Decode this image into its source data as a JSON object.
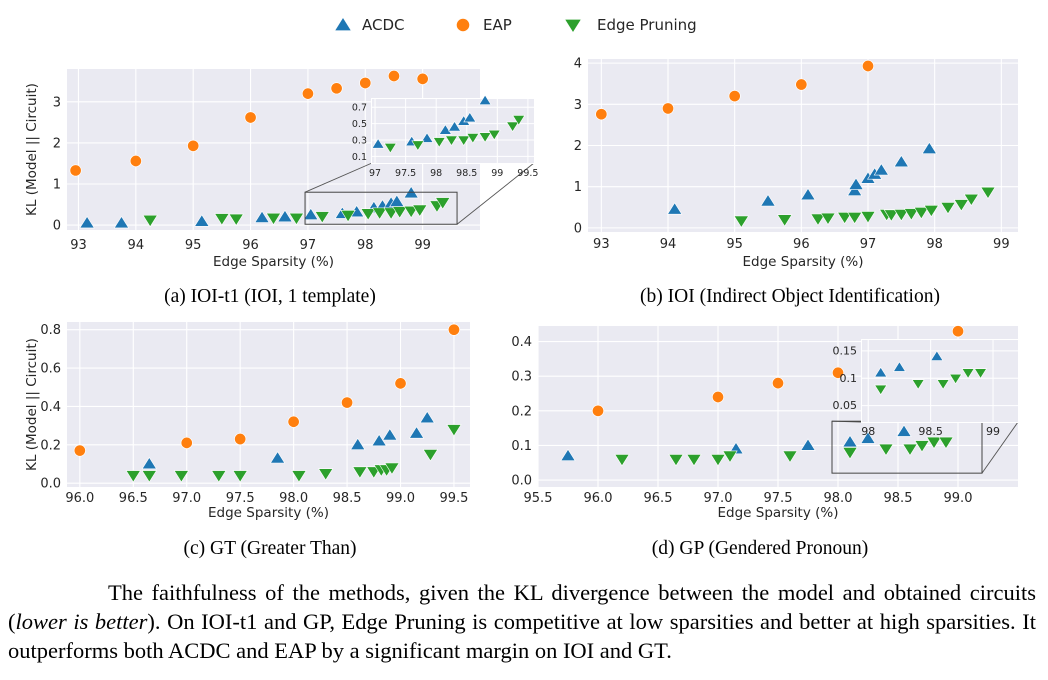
{
  "legend": {
    "placement": "top-center",
    "entries": [
      {
        "name": "ACDC",
        "marker": "triangle-up",
        "color": "#1f77b4"
      },
      {
        "name": "EAP",
        "marker": "circle",
        "color": "#ff7f0e"
      },
      {
        "name": "Edge Pruning",
        "marker": "triangle-down",
        "color": "#2ca02c"
      }
    ]
  },
  "chart_data": [
    {
      "id": "a",
      "type": "scatter",
      "caption": "(a) IOI-t1 (IOI, 1 template)",
      "xlabel": "Edge Sparsity (%)",
      "ylabel": "KL (Model || Circuit)",
      "xlim": [
        92.8,
        100.0
      ],
      "ylim": [
        -0.12,
        3.8
      ],
      "xticks": [
        93,
        94,
        95,
        96,
        97,
        98,
        99
      ],
      "yticks": [
        0,
        1,
        2,
        3
      ],
      "grid": true,
      "series": [
        {
          "name": "ACDC",
          "x": [
            93.15,
            93.75,
            95.15,
            96.2,
            96.6,
            97.05,
            97.6,
            97.85,
            98.15,
            98.3,
            98.45,
            98.55,
            98.8
          ],
          "y": [
            0.05,
            0.05,
            0.09,
            0.18,
            0.2,
            0.25,
            0.28,
            0.32,
            0.42,
            0.46,
            0.53,
            0.57,
            0.78
          ]
        },
        {
          "name": "EAP",
          "x": [
            92.95,
            94.0,
            95.0,
            96.0,
            97.0,
            97.5,
            98.0,
            98.5,
            99.0
          ],
          "y": [
            1.33,
            1.56,
            1.93,
            2.62,
            3.2,
            3.33,
            3.46,
            3.63,
            3.56
          ]
        },
        {
          "name": "Edge Pruning",
          "x": [
            94.25,
            95.5,
            95.75,
            96.4,
            96.8,
            97.25,
            97.7,
            98.05,
            98.25,
            98.45,
            98.6,
            98.8,
            98.95,
            99.25,
            99.35
          ],
          "y": [
            0.12,
            0.16,
            0.15,
            0.17,
            0.17,
            0.21,
            0.24,
            0.28,
            0.3,
            0.3,
            0.33,
            0.34,
            0.37,
            0.47,
            0.55
          ]
        }
      ],
      "inset": {
        "xlim": [
          96.95,
          99.6
        ],
        "ylim": [
          0.02,
          0.8
        ],
        "xticks": [
          "97",
          "97.5",
          "98",
          "98.5",
          "99",
          "99.5"
        ],
        "yticks": [
          "0.1",
          "0.3",
          "0.5",
          "0.7"
        ]
      }
    },
    {
      "id": "b",
      "type": "scatter",
      "caption": "(b) IOI (Indirect Object Identification)",
      "xlabel": "Edge Sparsity (%)",
      "ylabel": "",
      "xlim": [
        92.8,
        99.25
      ],
      "ylim": [
        -0.1,
        4.1
      ],
      "xticks": [
        93,
        94,
        95,
        96,
        97,
        98,
        99
      ],
      "yticks": [
        0,
        1,
        2,
        3,
        4
      ],
      "grid": true,
      "series": [
        {
          "name": "ACDC",
          "x": [
            94.1,
            95.5,
            96.1,
            96.8,
            96.82,
            97.0,
            97.1,
            97.2,
            97.5,
            97.92
          ],
          "y": [
            0.45,
            0.65,
            0.8,
            0.9,
            1.05,
            1.2,
            1.3,
            1.4,
            1.6,
            1.92
          ]
        },
        {
          "name": "EAP",
          "x": [
            93.0,
            94.0,
            95.0,
            96.0,
            97.0
          ],
          "y": [
            2.76,
            2.9,
            3.2,
            3.48,
            3.93
          ]
        },
        {
          "name": "Edge Pruning",
          "x": [
            95.1,
            95.75,
            96.25,
            96.4,
            96.65,
            96.8,
            97.0,
            97.28,
            97.35,
            97.5,
            97.65,
            97.8,
            97.95,
            98.2,
            98.4,
            98.55,
            98.8
          ],
          "y": [
            0.17,
            0.2,
            0.22,
            0.24,
            0.26,
            0.26,
            0.28,
            0.33,
            0.32,
            0.33,
            0.35,
            0.38,
            0.43,
            0.5,
            0.57,
            0.7,
            0.87
          ]
        }
      ]
    },
    {
      "id": "c",
      "type": "scatter",
      "caption": "(c) GT (Greater Than)",
      "xlabel": "Edge Sparsity (%)",
      "ylabel": "KL (Model || Circuit)",
      "xlim": [
        95.88,
        99.65
      ],
      "ylim": [
        -0.02,
        0.84
      ],
      "xticks": [
        "96.0",
        "96.5",
        "97.0",
        "97.5",
        "98.0",
        "98.5",
        "99.0",
        "99.5"
      ],
      "yticks": [
        "0.0",
        "0.2",
        "0.4",
        "0.6",
        "0.8"
      ],
      "grid": true,
      "series": [
        {
          "name": "ACDC",
          "x": [
            96.65,
            97.85,
            98.6,
            98.8,
            98.9,
            99.15,
            99.25
          ],
          "y": [
            0.1,
            0.13,
            0.2,
            0.22,
            0.25,
            0.26,
            0.34
          ]
        },
        {
          "name": "EAP",
          "x": [
            96.0,
            97.0,
            97.5,
            98.0,
            98.5,
            99.0,
            99.5
          ],
          "y": [
            0.17,
            0.21,
            0.23,
            0.32,
            0.42,
            0.52,
            0.8
          ]
        },
        {
          "name": "Edge Pruning",
          "x": [
            96.5,
            96.65,
            96.95,
            97.3,
            97.5,
            98.05,
            98.3,
            98.62,
            98.75,
            98.82,
            98.87,
            98.92,
            99.28,
            99.5
          ],
          "y": [
            0.04,
            0.04,
            0.04,
            0.04,
            0.04,
            0.04,
            0.05,
            0.06,
            0.06,
            0.07,
            0.07,
            0.08,
            0.15,
            0.28
          ]
        }
      ]
    },
    {
      "id": "d",
      "type": "scatter",
      "caption": "(d) GP (Gendered Pronoun)",
      "xlabel": "Edge Sparsity (%)",
      "ylabel": "",
      "xlim": [
        95.5,
        99.5
      ],
      "ylim": [
        -0.02,
        0.445
      ],
      "xticks": [
        "95.5",
        "96.0",
        "96.5",
        "97.0",
        "97.5",
        "98.0",
        "98.5",
        "99.0"
      ],
      "yticks": [
        "0.0",
        "0.1",
        "0.2",
        "0.3",
        "0.4"
      ],
      "grid": true,
      "series": [
        {
          "name": "ACDC",
          "x": [
            95.75,
            97.15,
            97.75,
            98.1,
            98.25,
            98.55
          ],
          "y": [
            0.07,
            0.09,
            0.1,
            0.11,
            0.12,
            0.14
          ]
        },
        {
          "name": "EAP",
          "x": [
            96.0,
            97.0,
            97.5,
            98.0,
            98.5,
            99.0
          ],
          "y": [
            0.2,
            0.24,
            0.28,
            0.31,
            0.35,
            0.43
          ]
        },
        {
          "name": "Edge Pruning",
          "x": [
            96.2,
            96.65,
            96.8,
            97.0,
            97.1,
            97.6,
            98.1,
            98.4,
            98.6,
            98.7,
            98.8,
            98.9
          ],
          "y": [
            0.06,
            0.06,
            0.06,
            0.06,
            0.07,
            0.07,
            0.08,
            0.09,
            0.09,
            0.1,
            0.11,
            0.11
          ]
        }
      ],
      "inset": {
        "xlim": [
          97.95,
          99.2
        ],
        "ylim": [
          0.02,
          0.17
        ],
        "xticks": [
          "98",
          "98.5",
          "99"
        ],
        "yticks": [
          "0.05",
          "0.1",
          "0.15"
        ]
      }
    }
  ],
  "sub_captions": [
    "(a) IOI-t1 (IOI, 1 template)",
    "(b) IOI (Indirect Object Identification)",
    "(c) GT (Greater Than)",
    "(d) GP (Gendered Pronoun)"
  ],
  "caption": {
    "part1": "The faithfulness of the methods, given the KL divergence between the model and obtained circuits (",
    "italic": "lower is better",
    "part2": "). On IOI-t1 and GP, Edge Pruning is competitive at low sparsities and better at high sparsities. It outperforms both ACDC and EAP by a significant margin on IOI and GT."
  }
}
